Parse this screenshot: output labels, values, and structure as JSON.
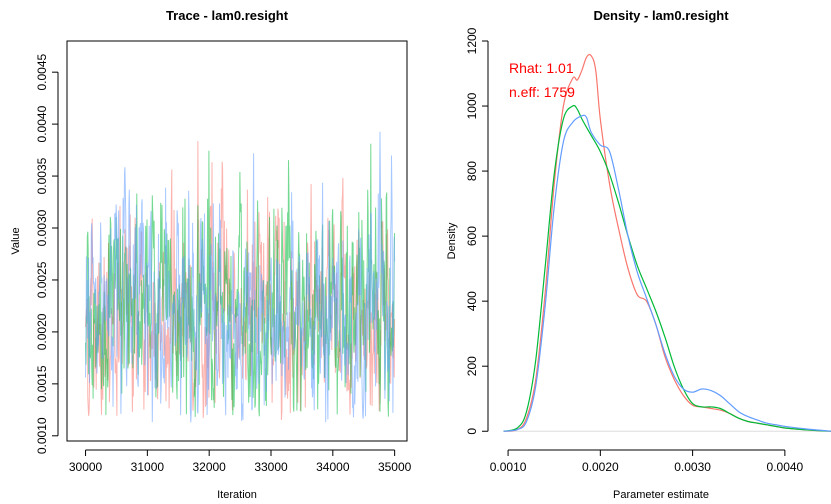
{
  "chart_data": [
    {
      "type": "line",
      "title": "Trace - lam0.resight",
      "xlabel": "Iteration",
      "ylabel": "Value",
      "xlim": [
        29700,
        35200
      ],
      "ylim": [
        0.00095,
        0.0048
      ],
      "xticks": [
        30000,
        31000,
        32000,
        33000,
        34000,
        35000
      ],
      "xtick_labels": [
        "30000",
        "31000",
        "32000",
        "33000",
        "34000",
        "35000"
      ],
      "yticks": [
        0.001,
        0.0015,
        0.002,
        0.0025,
        0.003,
        0.0035,
        0.004,
        0.0045
      ],
      "ytick_labels": [
        "0.0010",
        "0.0015",
        "0.0020",
        "0.0025",
        "0.0030",
        "0.0035",
        "0.0040",
        "0.0045"
      ],
      "grid": false,
      "series": [
        {
          "color": "#f8766d",
          "points_shown": 700,
          "x_range": [
            30000,
            35000
          ],
          "center": 0.00195,
          "spread": 0.00045,
          "min": 0.00115,
          "max": 0.00425
        },
        {
          "color": "#00ba38",
          "points_shown": 700,
          "x_range": [
            30000,
            35000
          ],
          "center": 0.002,
          "spread": 0.00048,
          "min": 0.00118,
          "max": 0.0042
        },
        {
          "color": "#619cff",
          "points_shown": 700,
          "x_range": [
            30000,
            35000
          ],
          "center": 0.00195,
          "spread": 0.00045,
          "min": 0.00112,
          "max": 0.00462
        }
      ]
    },
    {
      "type": "line",
      "title": "Density - lam0.resight",
      "xlabel": "Parameter estimate",
      "ylabel": "Density",
      "xlim": [
        0.00088,
        0.0045
      ],
      "ylim": [
        -30,
        1200
      ],
      "xticks": [
        0.001,
        0.002,
        0.003,
        0.004
      ],
      "xtick_labels": [
        "0.0010",
        "0.0020",
        "0.0030",
        "0.0040"
      ],
      "yticks": [
        0,
        200,
        400,
        600,
        800,
        1000,
        1200
      ],
      "ytick_labels": [
        "0",
        "200",
        "400",
        "600",
        "800",
        "1000",
        "1200"
      ],
      "grid": false,
      "annotations": {
        "rhat": "Rhat: 1.01",
        "neff": "n.eff: 1759"
      },
      "series": [
        {
          "color": "#f8766d",
          "x": [
            0.00095,
            0.0011,
            0.0012,
            0.0013,
            0.0014,
            0.0015,
            0.0016,
            0.0017,
            0.00175,
            0.0018,
            0.00185,
            0.0019,
            0.00195,
            0.002,
            0.0021,
            0.0022,
            0.0023,
            0.0024,
            0.0025,
            0.0026,
            0.0027,
            0.0028,
            0.0029,
            0.003,
            0.0031,
            0.0032,
            0.0033,
            0.0034,
            0.0035,
            0.0036,
            0.0037,
            0.0038,
            0.0039,
            0.004,
            0.0042,
            0.0045
          ],
          "y": [
            0,
            5,
            40,
            160,
            420,
            760,
            1000,
            1085,
            1080,
            1110,
            1150,
            1155,
            1110,
            960,
            760,
            620,
            500,
            420,
            400,
            330,
            230,
            160,
            110,
            80,
            75,
            70,
            65,
            55,
            40,
            30,
            25,
            20,
            15,
            10,
            5,
            0
          ]
        },
        {
          "color": "#00ba38",
          "x": [
            0.00095,
            0.0011,
            0.0012,
            0.0013,
            0.0014,
            0.0015,
            0.0016,
            0.0017,
            0.00175,
            0.0018,
            0.0019,
            0.002,
            0.0021,
            0.0022,
            0.0023,
            0.0024,
            0.0025,
            0.0026,
            0.0027,
            0.0028,
            0.0029,
            0.003,
            0.0031,
            0.0032,
            0.0033,
            0.0034,
            0.0035,
            0.0036,
            0.0037,
            0.0038,
            0.0039,
            0.004,
            0.0042,
            0.0045
          ],
          "y": [
            0,
            10,
            60,
            220,
            500,
            790,
            960,
            1000,
            990,
            960,
            910,
            860,
            790,
            700,
            600,
            510,
            440,
            370,
            290,
            200,
            130,
            85,
            75,
            75,
            70,
            55,
            40,
            30,
            25,
            20,
            15,
            10,
            5,
            0
          ]
        },
        {
          "color": "#619cff",
          "x": [
            0.00095,
            0.0011,
            0.0012,
            0.0013,
            0.0014,
            0.0015,
            0.0016,
            0.0017,
            0.0018,
            0.00185,
            0.0019,
            0.002,
            0.0021,
            0.0022,
            0.0023,
            0.0024,
            0.0025,
            0.0026,
            0.0027,
            0.0028,
            0.0029,
            0.003,
            0.0031,
            0.0032,
            0.0033,
            0.0034,
            0.0035,
            0.0036,
            0.0037,
            0.0038,
            0.0039,
            0.004,
            0.0042,
            0.0045
          ],
          "y": [
            0,
            5,
            30,
            140,
            380,
            690,
            890,
            950,
            970,
            965,
            920,
            880,
            860,
            740,
            600,
            490,
            410,
            330,
            240,
            170,
            130,
            120,
            130,
            125,
            110,
            85,
            60,
            45,
            35,
            25,
            20,
            15,
            8,
            0
          ]
        }
      ]
    }
  ]
}
